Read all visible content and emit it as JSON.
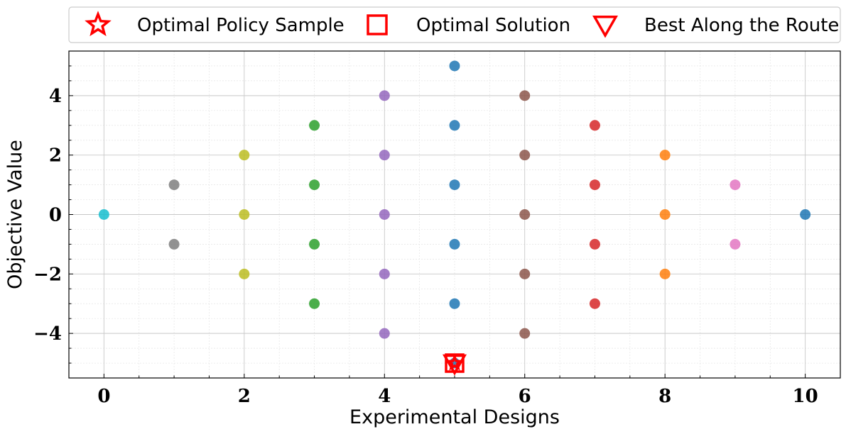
{
  "chart_data": {
    "type": "scatter",
    "xlabel": "Experimental Designs",
    "ylabel": "Objective Value",
    "xlim": [
      -0.5,
      10.5
    ],
    "ylim": [
      -5.5,
      5.5
    ],
    "x_ticks": [
      0,
      2,
      4,
      6,
      8,
      10
    ],
    "y_ticks": [
      -4,
      -2,
      0,
      2,
      4
    ],
    "x_tick_labels": [
      "0",
      "2",
      "4",
      "6",
      "8",
      "10"
    ],
    "y_tick_labels": [
      "−4",
      "−2",
      "0",
      "2",
      "4"
    ],
    "grid": "major and minor",
    "legend_position": "top, outside plot area",
    "points": [
      {
        "x": 0,
        "y": 0,
        "color": "#17becf"
      },
      {
        "x": 1,
        "y": 1,
        "color": "#7f7f7f"
      },
      {
        "x": 1,
        "y": -1,
        "color": "#7f7f7f"
      },
      {
        "x": 2,
        "y": 2,
        "color": "#bcbd22"
      },
      {
        "x": 2,
        "y": 0,
        "color": "#bcbd22"
      },
      {
        "x": 2,
        "y": -2,
        "color": "#bcbd22"
      },
      {
        "x": 3,
        "y": 3,
        "color": "#2ca02c"
      },
      {
        "x": 3,
        "y": 1,
        "color": "#2ca02c"
      },
      {
        "x": 3,
        "y": -1,
        "color": "#2ca02c"
      },
      {
        "x": 3,
        "y": -3,
        "color": "#2ca02c"
      },
      {
        "x": 4,
        "y": 4,
        "color": "#9467bd"
      },
      {
        "x": 4,
        "y": 2,
        "color": "#9467bd"
      },
      {
        "x": 4,
        "y": 0,
        "color": "#9467bd"
      },
      {
        "x": 4,
        "y": -2,
        "color": "#9467bd"
      },
      {
        "x": 4,
        "y": -4,
        "color": "#9467bd"
      },
      {
        "x": 5,
        "y": 5,
        "color": "#1f77b4"
      },
      {
        "x": 5,
        "y": 3,
        "color": "#1f77b4"
      },
      {
        "x": 5,
        "y": 1,
        "color": "#1f77b4"
      },
      {
        "x": 5,
        "y": -1,
        "color": "#1f77b4"
      },
      {
        "x": 5,
        "y": -3,
        "color": "#1f77b4"
      },
      {
        "x": 5,
        "y": -5,
        "color": "#1f77b4"
      },
      {
        "x": 6,
        "y": 4,
        "color": "#8c564b"
      },
      {
        "x": 6,
        "y": 2,
        "color": "#8c564b"
      },
      {
        "x": 6,
        "y": 0,
        "color": "#8c564b"
      },
      {
        "x": 6,
        "y": -2,
        "color": "#8c564b"
      },
      {
        "x": 6,
        "y": -4,
        "color": "#8c564b"
      },
      {
        "x": 7,
        "y": 3,
        "color": "#d62728"
      },
      {
        "x": 7,
        "y": 1,
        "color": "#d62728"
      },
      {
        "x": 7,
        "y": -1,
        "color": "#d62728"
      },
      {
        "x": 7,
        "y": -3,
        "color": "#d62728"
      },
      {
        "x": 8,
        "y": 2,
        "color": "#ff7f0e"
      },
      {
        "x": 8,
        "y": 0,
        "color": "#ff7f0e"
      },
      {
        "x": 8,
        "y": -2,
        "color": "#ff7f0e"
      },
      {
        "x": 9,
        "y": 1,
        "color": "#e377c2"
      },
      {
        "x": 9,
        "y": -1,
        "color": "#e377c2"
      },
      {
        "x": 10,
        "y": 0,
        "color": "#1f77b4"
      }
    ],
    "markers": [
      {
        "name": "Optimal Policy Sample",
        "shape": "star",
        "x": 5,
        "y": -5,
        "color": "#ff0000"
      },
      {
        "name": "Optimal Solution",
        "shape": "square",
        "x": 5,
        "y": -5,
        "color": "#ff0000"
      },
      {
        "name": "Best Along the Route",
        "shape": "triangle-down",
        "x": 5,
        "y": -5,
        "color": "#ff0000"
      }
    ]
  },
  "legend": {
    "items": [
      {
        "label": "Optimal Policy Sample",
        "shape": "star"
      },
      {
        "label": "Optimal Solution",
        "shape": "square"
      },
      {
        "label": "Best Along the Route",
        "shape": "triangle-down"
      }
    ],
    "marker_color": "#ff0000"
  }
}
